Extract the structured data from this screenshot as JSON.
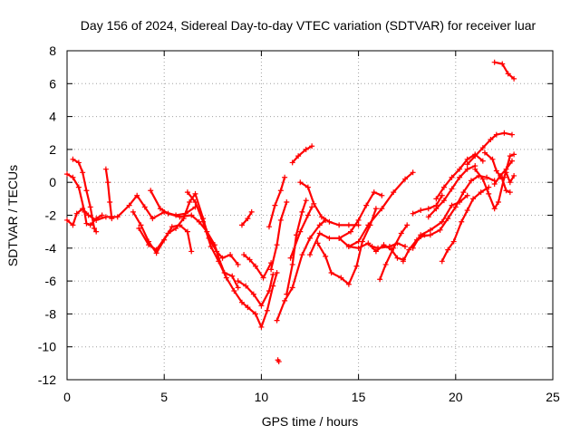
{
  "chart_data": {
    "type": "scatter",
    "title": "Day 156 of 2024, Sidereal Day-to-day VTEC variation (SDTVAR) for receiver luar",
    "xlabel": "GPS time / hours",
    "ylabel": "SDTVAR / TECUs",
    "xlim": [
      0,
      25
    ],
    "ylim": [
      -12,
      8
    ],
    "xticks": [
      0,
      5,
      10,
      15,
      20,
      25
    ],
    "yticks": [
      -12,
      -10,
      -8,
      -6,
      -4,
      -2,
      0,
      2,
      4,
      6,
      8
    ],
    "xtick_labels": [
      "0",
      "5",
      "10",
      "15",
      "20",
      "25"
    ],
    "ytick_labels": [
      "-12",
      "-10",
      "-8",
      "-6",
      "-4",
      "-2",
      "0",
      "2",
      "4",
      "6",
      "8"
    ],
    "grid": true,
    "marker": "+",
    "color": "#ff0000",
    "series": [
      {
        "name": "trace-1",
        "points": [
          [
            0.0,
            0.5
          ],
          [
            0.3,
            0.3
          ],
          [
            0.6,
            -0.3
          ],
          [
            0.9,
            -1.8
          ],
          [
            1.0,
            -2.5
          ],
          [
            1.2,
            -2.6
          ],
          [
            1.5,
            -2.2
          ],
          [
            1.8,
            -2.0
          ]
        ]
      },
      {
        "name": "trace-2",
        "points": [
          [
            0.0,
            -2.3
          ],
          [
            0.3,
            -2.6
          ],
          [
            0.5,
            -1.9
          ],
          [
            0.8,
            -1.6
          ],
          [
            1.1,
            -2.0
          ],
          [
            1.5,
            -2.3
          ],
          [
            2.0,
            -2.1
          ],
          [
            2.6,
            -2.1
          ],
          [
            3.2,
            -1.4
          ],
          [
            3.6,
            -0.8
          ],
          [
            4.0,
            -1.5
          ],
          [
            4.4,
            -2.2
          ],
          [
            5.0,
            -1.8
          ],
          [
            5.6,
            -2.0
          ],
          [
            6.1,
            -1.9
          ],
          [
            6.6,
            -1.5
          ]
        ]
      },
      {
        "name": "trace-3",
        "points": [
          [
            0.3,
            1.4
          ],
          [
            0.6,
            1.2
          ],
          [
            0.8,
            0.6
          ],
          [
            1.0,
            -0.5
          ],
          [
            1.2,
            -1.5
          ],
          [
            1.4,
            -2.8
          ],
          [
            1.5,
            -3.0
          ]
        ]
      },
      {
        "name": "trace-4",
        "points": [
          [
            2.0,
            0.8
          ],
          [
            2.1,
            0.0
          ],
          [
            2.2,
            -1.2
          ],
          [
            2.3,
            -2.2
          ]
        ]
      },
      {
        "name": "trace-5",
        "points": [
          [
            3.4,
            -1.8
          ],
          [
            3.8,
            -2.6
          ],
          [
            4.2,
            -3.6
          ],
          [
            4.6,
            -4.3
          ],
          [
            5.0,
            -3.5
          ],
          [
            5.4,
            -2.7
          ],
          [
            5.8,
            -2.6
          ],
          [
            6.2,
            -3.0
          ],
          [
            6.4,
            -4.2
          ]
        ]
      },
      {
        "name": "trace-6",
        "points": [
          [
            3.7,
            -2.8
          ],
          [
            4.2,
            -3.8
          ],
          [
            4.6,
            -4.1
          ],
          [
            5.2,
            -3.1
          ],
          [
            5.6,
            -2.8
          ],
          [
            6.0,
            -2.2
          ],
          [
            6.3,
            -1.2
          ],
          [
            6.6,
            -0.7
          ],
          [
            7.0,
            -2.2
          ],
          [
            7.3,
            -3.4
          ],
          [
            7.7,
            -4.2
          ],
          [
            8.0,
            -4.6
          ],
          [
            8.4,
            -4.4
          ],
          [
            8.8,
            -5.0
          ]
        ]
      },
      {
        "name": "trace-7",
        "points": [
          [
            4.3,
            -0.5
          ],
          [
            4.8,
            -1.6
          ],
          [
            5.2,
            -1.9
          ],
          [
            5.8,
            -2.1
          ],
          [
            6.4,
            -2.0
          ],
          [
            6.8,
            -2.4
          ],
          [
            7.2,
            -3.0
          ],
          [
            7.6,
            -3.8
          ],
          [
            7.8,
            -4.6
          ],
          [
            8.1,
            -5.5
          ],
          [
            8.5,
            -5.7
          ],
          [
            8.8,
            -6.4
          ]
        ]
      },
      {
        "name": "trace-8",
        "points": [
          [
            6.2,
            -0.6
          ],
          [
            6.6,
            -1.2
          ],
          [
            7.0,
            -2.4
          ],
          [
            7.4,
            -3.9
          ],
          [
            7.8,
            -4.8
          ],
          [
            8.2,
            -5.8
          ],
          [
            8.6,
            -6.6
          ],
          [
            9.0,
            -7.3
          ],
          [
            9.3,
            -7.6
          ],
          [
            9.7,
            -8.0
          ],
          [
            10.0,
            -8.8
          ],
          [
            10.3,
            -7.8
          ],
          [
            10.6,
            -6.3
          ],
          [
            10.8,
            -5.5
          ]
        ]
      },
      {
        "name": "trace-9",
        "points": [
          [
            8.8,
            -6.0
          ],
          [
            9.2,
            -6.3
          ],
          [
            9.6,
            -6.8
          ],
          [
            10.0,
            -7.5
          ],
          [
            10.4,
            -6.6
          ],
          [
            10.6,
            -5.6
          ]
        ]
      },
      {
        "name": "trace-10",
        "points": [
          [
            9.1,
            -4.4
          ],
          [
            9.4,
            -4.7
          ],
          [
            9.7,
            -5.1
          ],
          [
            10.1,
            -5.8
          ],
          [
            10.5,
            -4.9
          ]
        ]
      },
      {
        "name": "trace-11",
        "points": [
          [
            9.0,
            -2.6
          ],
          [
            9.3,
            -2.2
          ],
          [
            9.5,
            -1.8
          ]
        ]
      },
      {
        "name": "trace-12",
        "points": [
          [
            10.4,
            -2.7
          ],
          [
            10.7,
            -1.4
          ],
          [
            11.0,
            -0.5
          ],
          [
            11.2,
            0.3
          ]
        ]
      },
      {
        "name": "trace-13",
        "points": [
          [
            10.5,
            -5.3
          ],
          [
            10.8,
            -3.8
          ],
          [
            11.0,
            -2.3
          ],
          [
            11.3,
            -1.2
          ]
        ]
      },
      {
        "name": "trace-14",
        "points": [
          [
            11.3,
            -6.8
          ],
          [
            11.6,
            -5.0
          ],
          [
            11.8,
            -3.2
          ],
          [
            12.1,
            -1.8
          ],
          [
            12.3,
            -1.1
          ]
        ]
      },
      {
        "name": "trace-15",
        "points": [
          [
            10.8,
            -8.4
          ],
          [
            11.2,
            -7.2
          ],
          [
            11.6,
            -6.4
          ],
          [
            12.1,
            -4.4
          ],
          [
            12.5,
            -3.4
          ],
          [
            13.0,
            -2.6
          ],
          [
            13.3,
            -2.3
          ]
        ]
      },
      {
        "name": "trace-16",
        "points": [
          [
            11.5,
            -4.6
          ],
          [
            12.0,
            -3.0
          ],
          [
            12.4,
            -2.0
          ],
          [
            12.6,
            -1.5
          ]
        ]
      },
      {
        "name": "trace-17",
        "points": [
          [
            11.6,
            1.2
          ],
          [
            11.9,
            1.6
          ],
          [
            12.3,
            2.0
          ],
          [
            12.6,
            2.2
          ]
        ]
      },
      {
        "name": "trace-18",
        "points": [
          [
            12.0,
            0.0
          ],
          [
            12.4,
            -0.3
          ],
          [
            12.7,
            -1.3
          ],
          [
            13.1,
            -2.1
          ],
          [
            13.5,
            -2.4
          ],
          [
            14.0,
            -2.6
          ],
          [
            14.5,
            -2.6
          ],
          [
            15.0,
            -2.6
          ]
        ]
      },
      {
        "name": "trace-19",
        "points": [
          [
            12.5,
            -4.4
          ],
          [
            13.0,
            -3.1
          ],
          [
            13.5,
            -3.4
          ],
          [
            14.0,
            -3.4
          ],
          [
            14.5,
            -3.9
          ],
          [
            15.0,
            -4.0
          ],
          [
            15.5,
            -3.7
          ],
          [
            15.9,
            -4.2
          ],
          [
            16.3,
            -3.8
          ],
          [
            16.7,
            -4.1
          ],
          [
            17.0,
            -4.6
          ],
          [
            17.3,
            -4.7
          ]
        ]
      },
      {
        "name": "trace-20",
        "points": [
          [
            12.9,
            -3.7
          ],
          [
            13.3,
            -4.5
          ],
          [
            13.6,
            -5.5
          ],
          [
            14.1,
            -5.8
          ],
          [
            14.5,
            -6.2
          ],
          [
            14.9,
            -5.1
          ],
          [
            15.2,
            -3.6
          ],
          [
            15.6,
            -2.6
          ],
          [
            15.9,
            -1.6
          ]
        ]
      },
      {
        "name": "trace-21",
        "points": [
          [
            14.0,
            -3.4
          ],
          [
            14.6,
            -3.0
          ],
          [
            15.0,
            -2.3
          ],
          [
            15.4,
            -1.4
          ],
          [
            15.8,
            -0.6
          ],
          [
            16.2,
            -0.8
          ]
        ]
      },
      {
        "name": "trace-22",
        "points": [
          [
            14.5,
            -3.9
          ],
          [
            15.0,
            -3.6
          ],
          [
            15.5,
            -2.6
          ],
          [
            16.2,
            -1.6
          ],
          [
            16.8,
            -0.6
          ],
          [
            17.4,
            0.2
          ],
          [
            17.8,
            0.6
          ]
        ]
      },
      {
        "name": "trace-23",
        "points": [
          [
            15.7,
            -3.9
          ],
          [
            16.0,
            -4.0
          ],
          [
            16.6,
            -3.9
          ],
          [
            17.0,
            -3.7
          ],
          [
            17.4,
            -3.9
          ]
        ]
      },
      {
        "name": "trace-24",
        "points": [
          [
            16.1,
            -5.9
          ],
          [
            16.4,
            -5.0
          ],
          [
            16.8,
            -4.0
          ],
          [
            17.2,
            -3.1
          ],
          [
            17.5,
            -2.6
          ]
        ]
      },
      {
        "name": "trace-25",
        "points": [
          [
            17.3,
            -4.8
          ],
          [
            17.6,
            -4.1
          ],
          [
            18.0,
            -3.5
          ],
          [
            18.4,
            -3.2
          ]
        ]
      },
      {
        "name": "trace-26",
        "points": [
          [
            17.8,
            -1.9
          ],
          [
            18.2,
            -1.7
          ],
          [
            18.6,
            -1.6
          ],
          [
            19.0,
            -1.4
          ],
          [
            19.3,
            -0.8
          ]
        ]
      },
      {
        "name": "trace-27",
        "points": [
          [
            17.8,
            -4.0
          ],
          [
            18.2,
            -3.2
          ],
          [
            18.7,
            -2.9
          ],
          [
            19.3,
            -2.4
          ],
          [
            19.8,
            -1.4
          ],
          [
            20.2,
            -1.2
          ],
          [
            20.6,
            -0.8
          ]
        ]
      },
      {
        "name": "trace-28",
        "points": [
          [
            18.2,
            -3.3
          ],
          [
            18.7,
            -3.2
          ],
          [
            19.2,
            -2.9
          ],
          [
            19.6,
            -2.2
          ],
          [
            20.0,
            -1.5
          ],
          [
            20.4,
            -0.6
          ],
          [
            20.8,
            0.1
          ],
          [
            21.2,
            0.4
          ],
          [
            21.6,
            0.3
          ],
          [
            22.0,
            0.1
          ]
        ]
      },
      {
        "name": "trace-29",
        "points": [
          [
            18.6,
            -2.1
          ],
          [
            19.0,
            -1.6
          ],
          [
            19.4,
            -1.1
          ],
          [
            19.8,
            -0.4
          ],
          [
            20.2,
            0.3
          ],
          [
            20.6,
            0.8
          ],
          [
            21.0,
            1.0
          ]
        ]
      },
      {
        "name": "trace-30",
        "points": [
          [
            19.0,
            -1.0
          ],
          [
            19.4,
            -0.3
          ],
          [
            19.8,
            0.3
          ],
          [
            20.2,
            0.8
          ],
          [
            20.6,
            1.4
          ],
          [
            21.0,
            1.7
          ],
          [
            21.4,
            1.3
          ]
        ]
      },
      {
        "name": "trace-31",
        "points": [
          [
            19.3,
            -4.8
          ],
          [
            19.6,
            -4.1
          ],
          [
            19.9,
            -3.6
          ],
          [
            20.3,
            -2.4
          ],
          [
            20.6,
            -1.7
          ],
          [
            20.9,
            -1.0
          ],
          [
            21.3,
            -0.6
          ],
          [
            21.7,
            -0.3
          ]
        ]
      },
      {
        "name": "trace-32",
        "points": [
          [
            20.6,
            1.1
          ],
          [
            21.0,
            1.6
          ],
          [
            21.4,
            2.1
          ],
          [
            21.8,
            2.6
          ],
          [
            22.1,
            2.9
          ],
          [
            22.5,
            3.0
          ],
          [
            22.9,
            2.9
          ]
        ]
      },
      {
        "name": "trace-33",
        "points": [
          [
            21.5,
            1.8
          ],
          [
            21.9,
            1.4
          ],
          [
            22.1,
            0.7
          ],
          [
            22.4,
            0.2
          ],
          [
            22.6,
            -0.5
          ],
          [
            22.8,
            -0.6
          ]
        ]
      },
      {
        "name": "trace-34",
        "points": [
          [
            21.0,
            0.8
          ],
          [
            21.4,
            0.2
          ],
          [
            21.7,
            -0.7
          ],
          [
            22.0,
            -1.6
          ],
          [
            22.2,
            -1.2
          ],
          [
            22.5,
            0.3
          ],
          [
            22.8,
            1.6
          ],
          [
            23.0,
            1.7
          ]
        ]
      },
      {
        "name": "trace-35",
        "points": [
          [
            22.0,
            -0.1
          ],
          [
            22.3,
            0.4
          ],
          [
            22.6,
            0.8
          ],
          [
            22.9,
            1.3
          ]
        ]
      },
      {
        "name": "trace-36",
        "points": [
          [
            22.6,
            0.6
          ],
          [
            22.8,
            0.0
          ],
          [
            23.0,
            0.4
          ]
        ]
      },
      {
        "name": "trace-37",
        "points": [
          [
            22.0,
            7.3
          ],
          [
            22.4,
            7.2
          ],
          [
            22.7,
            6.6
          ],
          [
            23.0,
            6.3
          ]
        ]
      },
      {
        "name": "trace-38",
        "points": [
          [
            10.85,
            -10.8
          ],
          [
            10.9,
            -10.9
          ]
        ]
      }
    ]
  }
}
